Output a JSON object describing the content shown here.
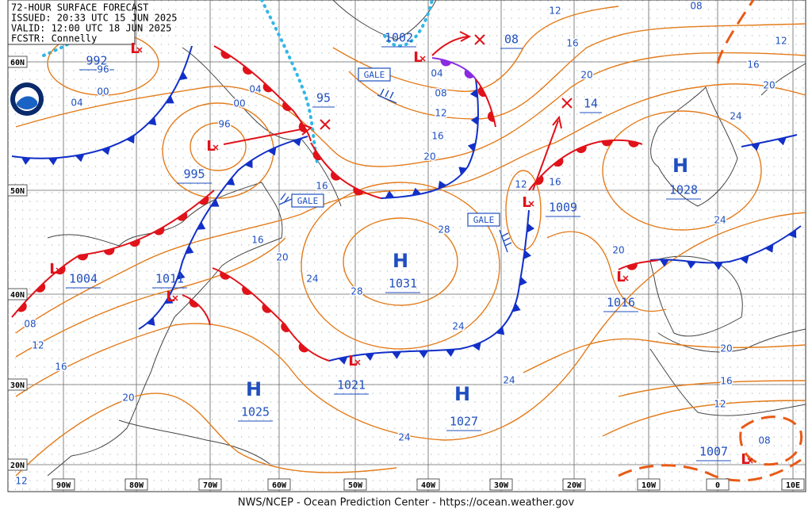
{
  "header": {
    "title": "72-HOUR SURFACE FORECAST",
    "issued": "ISSUED: 20:33 UTC 15 JUN 2025",
    "valid": "VALID:  12:00 UTC 18 JUN 2025",
    "forecaster": "FCSTR:  Connelly"
  },
  "footer": "NWS/NCEP - Ocean Prediction Center - https://ocean.weather.gov",
  "latitude_labels": [
    "60N",
    "50N",
    "40N",
    "30N",
    "20N"
  ],
  "longitude_labels": [
    "90W",
    "80W",
    "70W",
    "60W",
    "50W",
    "40W",
    "30W",
    "20W",
    "10W",
    "0",
    "10E"
  ],
  "centers": [
    {
      "symbol": "L",
      "pressure": "992"
    },
    {
      "symbol": "L",
      "pressure": "1002"
    },
    {
      "symbol": "L",
      "pressure": "995"
    },
    {
      "symbol": "L",
      "pressure": "1004"
    },
    {
      "symbol": "L",
      "pressure": "1011"
    },
    {
      "symbol": "L",
      "pressure": "1009"
    },
    {
      "symbol": "L",
      "pressure": "1016"
    },
    {
      "symbol": "L",
      "pressure": "1021"
    },
    {
      "symbol": "L",
      "pressure": "1007"
    },
    {
      "symbol": "H",
      "pressure": "1031"
    },
    {
      "symbol": "H",
      "pressure": "1025"
    },
    {
      "symbol": "H",
      "pressure": "1027"
    },
    {
      "symbol": "H",
      "pressure": "1028"
    }
  ],
  "track_labels": [
    "08",
    "95",
    "14"
  ],
  "gale_labels": [
    "GALE",
    "GALE",
    "GALE"
  ],
  "isobar_labels": [
    "12",
    "08",
    "16",
    "12",
    "20",
    "16",
    "20",
    "24",
    "96",
    "04",
    "00",
    "00",
    "04",
    "96",
    "04",
    "08",
    "12",
    "16",
    "20",
    "16",
    "12",
    "16",
    "16",
    "20",
    "28",
    "24",
    "28",
    "24",
    "20",
    "24",
    "20",
    "16",
    "12",
    "08",
    "24",
    "24",
    "20",
    "16",
    "12",
    "08",
    "12"
  ]
}
